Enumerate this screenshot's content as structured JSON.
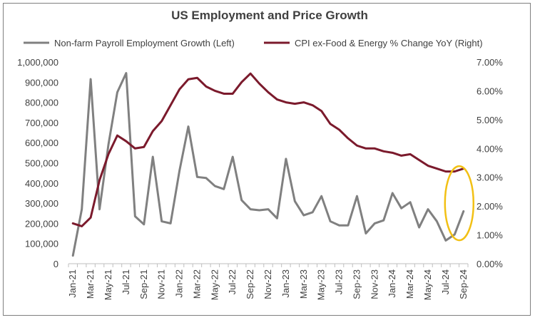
{
  "chart_data": {
    "type": "line",
    "title": "US Employment and Price Growth",
    "x": [
      "Jan-21",
      "Feb-21",
      "Mar-21",
      "Apr-21",
      "May-21",
      "Jun-21",
      "Jul-21",
      "Aug-21",
      "Sep-21",
      "Oct-21",
      "Nov-21",
      "Dec-21",
      "Jan-22",
      "Feb-22",
      "Mar-22",
      "Apr-22",
      "May-22",
      "Jun-22",
      "Jul-22",
      "Aug-22",
      "Sep-22",
      "Oct-22",
      "Nov-22",
      "Dec-22",
      "Jan-23",
      "Feb-23",
      "Mar-23",
      "Apr-23",
      "May-23",
      "Jun-23",
      "Jul-23",
      "Aug-23",
      "Sep-23",
      "Oct-23",
      "Nov-23",
      "Dec-23",
      "Jan-24",
      "Feb-24",
      "Mar-24",
      "Apr-24",
      "May-24",
      "Jun-24",
      "Jul-24",
      "Aug-24",
      "Sep-24"
    ],
    "x_tick_labels": [
      "Jan-21",
      "Mar-21",
      "May-21",
      "Jul-21",
      "Sep-21",
      "Nov-21",
      "Jan-22",
      "Mar-22",
      "May-22",
      "Jul-22",
      "Sep-22",
      "Nov-22",
      "Jan-23",
      "Mar-23",
      "May-23",
      "Jul-23",
      "Sep-23",
      "Nov-23",
      "Jan-24",
      "Mar-24",
      "May-24",
      "Jul-24",
      "Sep-24"
    ],
    "series": [
      {
        "name": "Non-farm Payroll Employment Growth (Left)",
        "axis": "left",
        "color": "#808080",
        "values": [
          40000,
          270000,
          915000,
          270000,
          590000,
          850000,
          945000,
          235000,
          195000,
          530000,
          210000,
          200000,
          460000,
          680000,
          430000,
          425000,
          385000,
          370000,
          530000,
          315000,
          270000,
          265000,
          270000,
          225000,
          520000,
          310000,
          240000,
          255000,
          335000,
          210000,
          190000,
          190000,
          335000,
          150000,
          200000,
          215000,
          350000,
          275000,
          305000,
          180000,
          270000,
          210000,
          115000,
          145000,
          260000
        ]
      },
      {
        "name": "CPI ex-Food & Energy % Change YoY (Right)",
        "axis": "right",
        "color": "#7b1a2c",
        "values": [
          1.4,
          1.3,
          1.6,
          2.9,
          3.8,
          4.45,
          4.25,
          4.0,
          4.05,
          4.6,
          4.95,
          5.5,
          6.05,
          6.4,
          6.45,
          6.15,
          6.0,
          5.9,
          5.9,
          6.3,
          6.6,
          6.25,
          5.95,
          5.7,
          5.6,
          5.55,
          5.6,
          5.5,
          5.3,
          4.85,
          4.65,
          4.35,
          4.1,
          4.0,
          4.0,
          3.9,
          3.85,
          3.75,
          3.8,
          3.6,
          3.4,
          3.3,
          3.2,
          3.2,
          3.3
        ]
      }
    ],
    "y_left": {
      "min": 0,
      "max": 1000000,
      "ticks": [
        "0",
        "100,000",
        "200,000",
        "300,000",
        "400,000",
        "500,000",
        "600,000",
        "700,000",
        "800,000",
        "900,000",
        "1,000,000"
      ]
    },
    "y_right": {
      "min": 0,
      "max": 7,
      "ticks": [
        "0.00%",
        "1.00%",
        "2.00%",
        "3.00%",
        "4.00%",
        "5.00%",
        "6.00%",
        "7.00%"
      ]
    },
    "grid": false,
    "legend": "top",
    "highlight": {
      "color": "#f2c014",
      "x": "Sep-24"
    },
    "axis_color": "#bfbfbf"
  }
}
